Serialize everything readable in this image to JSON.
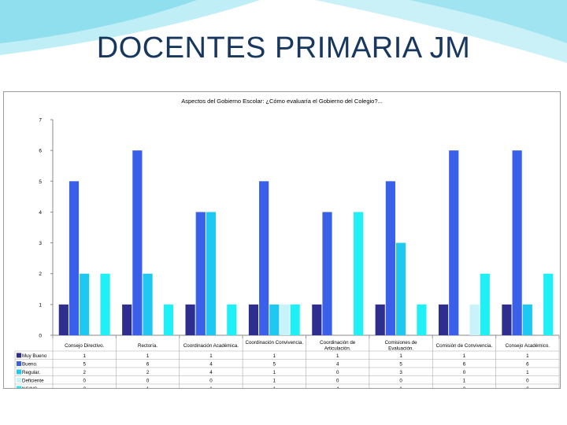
{
  "slide": {
    "title": "DOCENTES PRIMARIA JM"
  },
  "chart_data": {
    "type": "bar",
    "title": "Aspectos del Gobierno Escolar: ¿Cómo evaluaría el Gobierno del Colegio?...",
    "xlabel": "",
    "ylabel": "",
    "ylim": [
      0,
      7
    ],
    "yticks": [
      0,
      1,
      2,
      3,
      4,
      5,
      6,
      7
    ],
    "grid": false,
    "legend": "bottom-left data table",
    "categories": [
      "Consejo Directivo.",
      "Rectoría.",
      "Coordinación Académica.",
      "Coordinación Convivencia.",
      "Coordinación de Articulación.",
      "Comisiones de Evaluación.",
      "Comisión de Convivencia.",
      "Consejo Académico."
    ],
    "series": [
      {
        "name": "Muy Bueno",
        "color": "#2e2e8f",
        "values": [
          1,
          1,
          1,
          1,
          1,
          1,
          1,
          1
        ]
      },
      {
        "name": "Bueno.",
        "color": "#3a5fe8",
        "values": [
          5,
          6,
          4,
          5,
          4,
          5,
          6,
          6
        ]
      },
      {
        "name": "Regular.",
        "color": "#1ec8f0",
        "values": [
          2,
          2,
          4,
          1,
          0,
          3,
          0,
          1
        ]
      },
      {
        "name": "Deficiente",
        "color": "#c9f3fb",
        "values": [
          0,
          0,
          0,
          1,
          0,
          0,
          1,
          0
        ]
      },
      {
        "name": "NS/NC",
        "color": "#1ef0f6",
        "values": [
          2,
          1,
          1,
          1,
          4,
          1,
          2,
          2
        ]
      }
    ]
  }
}
